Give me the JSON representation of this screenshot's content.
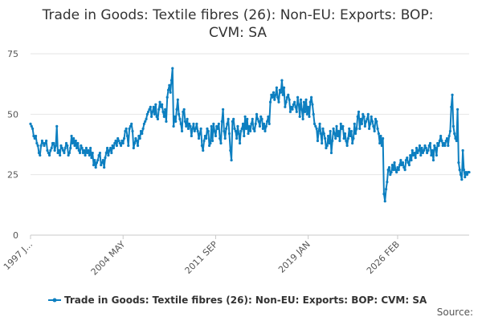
{
  "chart_data": {
    "type": "line",
    "title_lines": [
      "Trade in Goods: Textile fibres (26): Non-EU: Exports: BOP:",
      "CVM: SA"
    ],
    "xlabel": "",
    "ylabel": "",
    "ylim": [
      0,
      75
    ],
    "y_ticks": [
      "0",
      "25",
      "50",
      "75"
    ],
    "x_ticks": [
      {
        "label": "1997 J...",
        "index": 0
      },
      {
        "label": "2004 MAY",
        "index": 88
      },
      {
        "label": "2011 SEP",
        "index": 176
      },
      {
        "label": "2019 JAN",
        "index": 264
      },
      {
        "label": "2026 FEB",
        "index": 349
      }
    ],
    "grid": true,
    "legend_position": "bottom",
    "series_color": "#0d7fc0",
    "series": [
      {
        "name": "Trade in Goods: Textile fibres (26): Non-EU: Exports: BOP: CVM: SA",
        "values": [
          46,
          45,
          44,
          41,
          40,
          41,
          38,
          37,
          34,
          33,
          37,
          39,
          38,
          37,
          38,
          39,
          35,
          34,
          33,
          35,
          36,
          38,
          38,
          35,
          37,
          45,
          34,
          35,
          33,
          37,
          36,
          35,
          34,
          36,
          38,
          37,
          33,
          34,
          36,
          41,
          38,
          40,
          37,
          39,
          36,
          38,
          35,
          34,
          37,
          36,
          34,
          35,
          33,
          36,
          34,
          35,
          33,
          36,
          32,
          34,
          29,
          31,
          28,
          30,
          31,
          33,
          34,
          29,
          30,
          31,
          28,
          32,
          34,
          36,
          33,
          35,
          36,
          34,
          37,
          36,
          38,
          39,
          37,
          40,
          39,
          38,
          37,
          39,
          38,
          40,
          43,
          44,
          41,
          37,
          44,
          45,
          46,
          43,
          36,
          38,
          40,
          39,
          37,
          41,
          40,
          43,
          42,
          44,
          46,
          47,
          48,
          50,
          51,
          52,
          53,
          49,
          51,
          53,
          50,
          54,
          49,
          48,
          52,
          55,
          53,
          54,
          51,
          49,
          52,
          47,
          57,
          60,
          62,
          59,
          64,
          69,
          45,
          49,
          47,
          52,
          56,
          50,
          48,
          46,
          43,
          51,
          52,
          47,
          45,
          48,
          44,
          46,
          45,
          41,
          44,
          46,
          43,
          44,
          46,
          43,
          40,
          42,
          44,
          37,
          35,
          39,
          41,
          40,
          44,
          43,
          37,
          38,
          45,
          39,
          46,
          43,
          41,
          45,
          44,
          46,
          40,
          38,
          47,
          52,
          43,
          40,
          44,
          46,
          48,
          42,
          35,
          31,
          47,
          48,
          44,
          43,
          40,
          45,
          42,
          38,
          43,
          44,
          46,
          41,
          49,
          44,
          48,
          42,
          45,
          43,
          46,
          48,
          44,
          43,
          46,
          50,
          48,
          47,
          45,
          49,
          48,
          44,
          46,
          43,
          45,
          47,
          49,
          46,
          55,
          58,
          57,
          59,
          56,
          58,
          61,
          57,
          55,
          60,
          59,
          64,
          58,
          61,
          53,
          55,
          57,
          58,
          56,
          51,
          53,
          52,
          54,
          55,
          53,
          51,
          57,
          54,
          49,
          56,
          52,
          48,
          55,
          51,
          56,
          50,
          53,
          49,
          55,
          57,
          54,
          50,
          46,
          45,
          44,
          39,
          43,
          46,
          42,
          38,
          44,
          42,
          40,
          36,
          37,
          41,
          38,
          43,
          34,
          39,
          44,
          42,
          40,
          45,
          41,
          43,
          39,
          46,
          44,
          45,
          40,
          42,
          39,
          37,
          40,
          44,
          41,
          43,
          38,
          40,
          46,
          42,
          44,
          49,
          51,
          44,
          48,
          46,
          50,
          49,
          45,
          47,
          48,
          50,
          44,
          46,
          49,
          47,
          45,
          43,
          48,
          47,
          44,
          42,
          38,
          41,
          37,
          40,
          17,
          14,
          19,
          22,
          27,
          28,
          25,
          26,
          29,
          27,
          30,
          27,
          26,
          28,
          27,
          29,
          31,
          29,
          30,
          28,
          27,
          31,
          32,
          30,
          29,
          33,
          31,
          35,
          33,
          34,
          32,
          36,
          34,
          35,
          37,
          33,
          36,
          34,
          35,
          37,
          36,
          34,
          35,
          37,
          38,
          33,
          35,
          31,
          37,
          36,
          33,
          38,
          37,
          39,
          41,
          39,
          37,
          38,
          37,
          39,
          40,
          37,
          41,
          43,
          53,
          58,
          45,
          42,
          40,
          39,
          52,
          30,
          27,
          25,
          23,
          35,
          27,
          24,
          26,
          25,
          26,
          26
        ]
      }
    ]
  },
  "source_label": "Source:"
}
